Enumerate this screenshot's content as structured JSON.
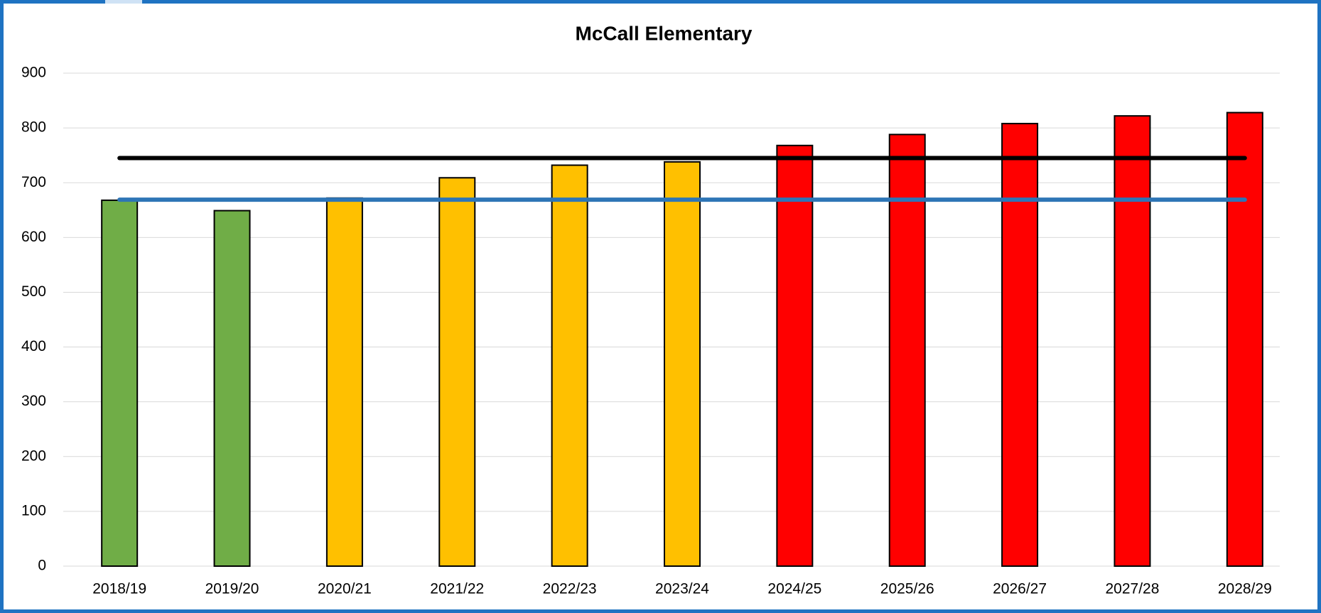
{
  "chart_data": {
    "type": "bar",
    "title": "McCall Elementary",
    "categories": [
      "2018/19",
      "2019/20",
      "2020/21",
      "2021/22",
      "2022/23",
      "2023/24",
      "2024/25",
      "2025/26",
      "2026/27",
      "2027/28",
      "2028/29"
    ],
    "values": [
      668,
      649,
      672,
      709,
      732,
      738,
      768,
      788,
      808,
      822,
      828
    ],
    "colors": [
      "#70ad47",
      "#70ad47",
      "#ffc000",
      "#ffc000",
      "#ffc000",
      "#ffc000",
      "#ff0000",
      "#ff0000",
      "#ff0000",
      "#ff0000",
      "#ff0000"
    ],
    "reference_lines": [
      {
        "value": 745,
        "color": "#000000"
      },
      {
        "value": 669,
        "color": "#2e75b6"
      }
    ],
    "ylim": [
      0,
      900
    ],
    "yticks": [
      0,
      100,
      200,
      300,
      400,
      500,
      600,
      700,
      800,
      900
    ],
    "grid": true
  }
}
